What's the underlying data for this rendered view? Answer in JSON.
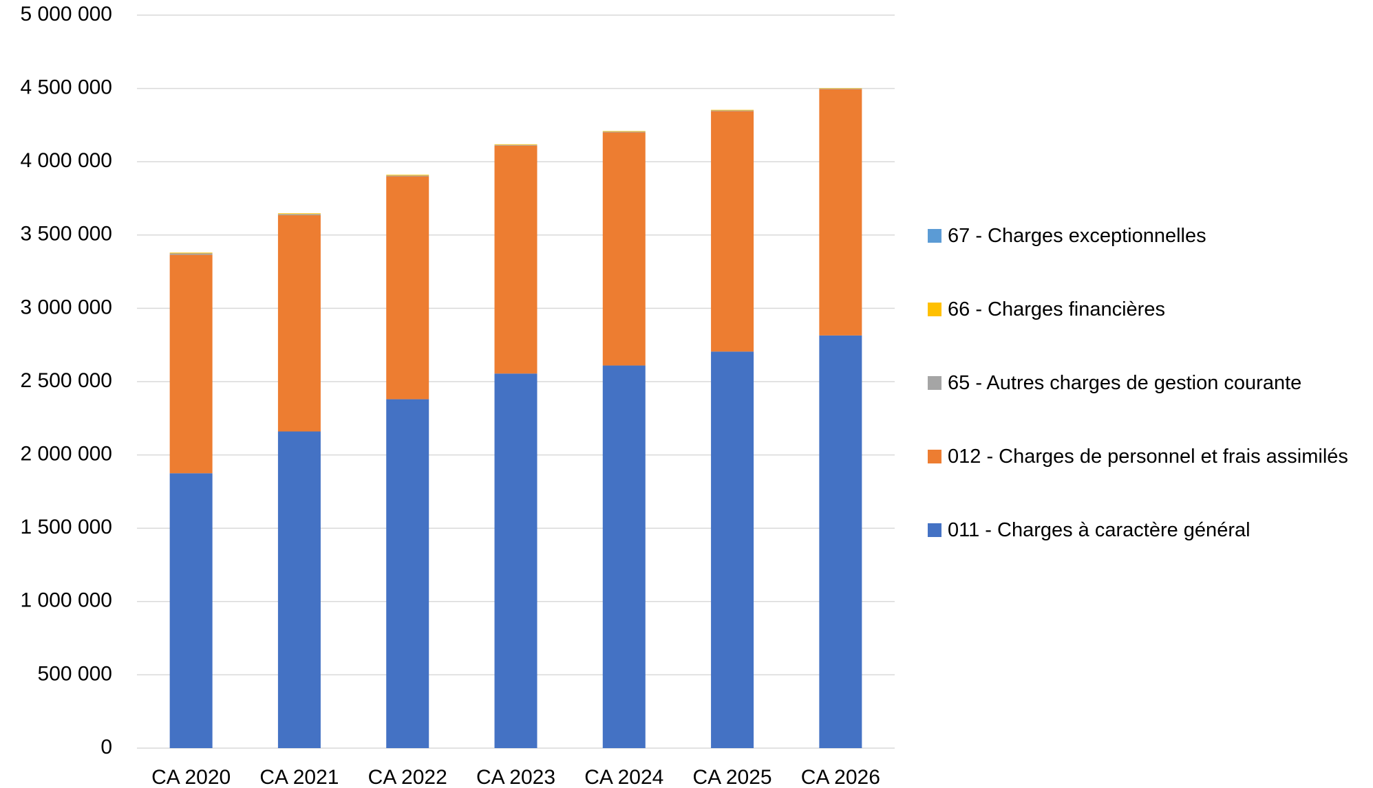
{
  "chart_data": {
    "type": "stacked_bar",
    "categories": [
      "CA 2020",
      "CA 2021",
      "CA 2022",
      "CA 2023",
      "CA 2024",
      "CA 2025",
      "CA 2026"
    ],
    "series": [
      {
        "name": "011 - Charges à caractère général",
        "color": "#4472c4",
        "values": [
          1875000,
          2160000,
          2380000,
          2555000,
          2610000,
          2705000,
          2815000
        ]
      },
      {
        "name": "012 - Charges de personnel et frais assimilés",
        "color": "#ed7d31",
        "values": [
          1490000,
          1475000,
          1520000,
          1555000,
          1590000,
          1640000,
          1680000
        ]
      },
      {
        "name": "65 - Autres charges de gestion courante",
        "color": "#a5a5a5",
        "values": [
          10000,
          8000,
          6000,
          5000,
          5000,
          5000,
          4000
        ]
      },
      {
        "name": "66 - Charges financières",
        "color": "#ffc000",
        "values": [
          5000,
          5000,
          5000,
          4000,
          4000,
          4000,
          3000
        ]
      },
      {
        "name": "67 - Charges exceptionnelles",
        "color": "#5b9bd5",
        "values": [
          0,
          0,
          0,
          0,
          0,
          0,
          0
        ]
      }
    ],
    "ylim": [
      0,
      5000000
    ],
    "yticks": [
      0,
      {
        "value": 500000,
        "label": "500 000"
      },
      {
        "value": 1000000,
        "label": "1 000 000"
      },
      {
        "value": 1500000,
        "label": "1 500 000"
      },
      {
        "value": 2000000,
        "label": "2 000 000"
      },
      {
        "value": 2500000,
        "label": "2 500 000"
      },
      {
        "value": 3000000,
        "label": "3 000 000"
      },
      {
        "value": 3500000,
        "label": "3 500 000"
      },
      {
        "value": 4000000,
        "label": "4 000 000"
      },
      {
        "value": 4500000,
        "label": "4 500 000"
      },
      {
        "value": 5000000,
        "label": "5 000 000"
      }
    ],
    "grid": true,
    "legend": "right"
  }
}
